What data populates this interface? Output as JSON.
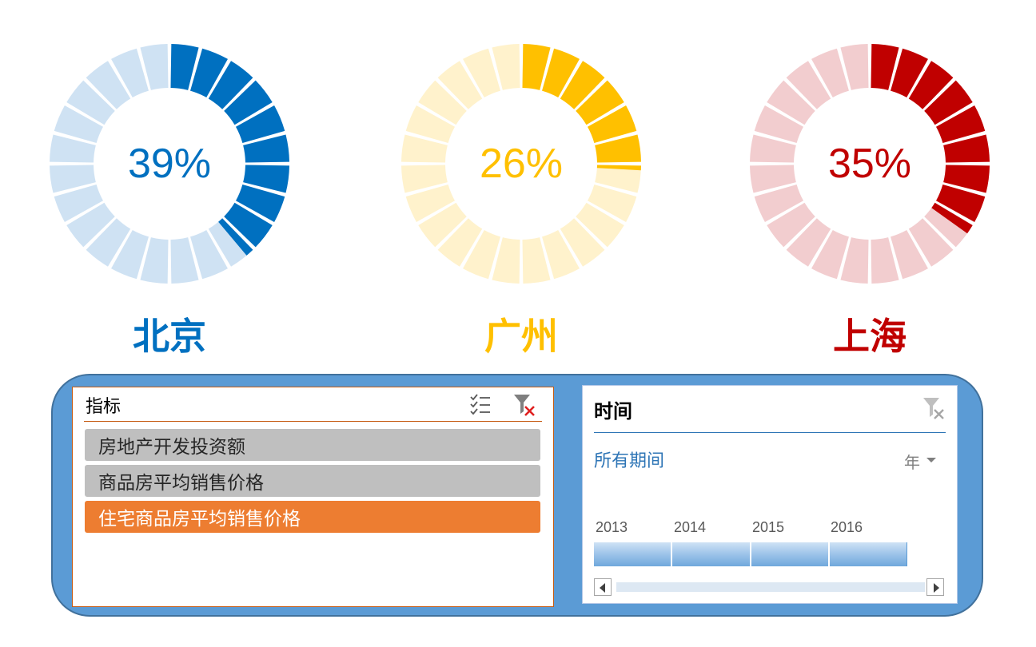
{
  "chart_data": [
    {
      "type": "pie",
      "subtype": "donut-segmented",
      "title": "北京",
      "value": 39,
      "value_label": "39%",
      "segments": 24,
      "color": "#0070c0",
      "track_color": "#cfe2f3"
    },
    {
      "type": "pie",
      "subtype": "donut-segmented",
      "title": "广州",
      "value": 26,
      "value_label": "26%",
      "segments": 24,
      "color": "#ffc000",
      "track_color": "#fff2cc"
    },
    {
      "type": "pie",
      "subtype": "donut-segmented",
      "title": "上海",
      "value": 35,
      "value_label": "35%",
      "segments": 24,
      "color": "#c00000",
      "track_color": "#f2cdcf"
    }
  ],
  "slicer": {
    "title": "指标",
    "multi_select_icon": "multi-select-icon",
    "clear_filter_icon": "clear-filter-icon",
    "items": [
      {
        "label": "房地产开发投资额",
        "selected": false
      },
      {
        "label": "商品房平均销售价格",
        "selected": false
      },
      {
        "label": "住宅商品房平均销售价格",
        "selected": true
      }
    ],
    "colors": {
      "selected": "#ed7d31",
      "unselected": "#bfbfbf",
      "selected_text": "#ffffff",
      "unselected_text": "#262626"
    }
  },
  "timeline": {
    "title": "时间",
    "clear_filter_icon": "clear-filter-icon",
    "period_label": "所有期间",
    "level_label": "年",
    "years": [
      "2013",
      "2014",
      "2015",
      "2016"
    ]
  },
  "colors": {
    "panel_bg": "#5b9bd5",
    "panel_border": "#41719c"
  }
}
